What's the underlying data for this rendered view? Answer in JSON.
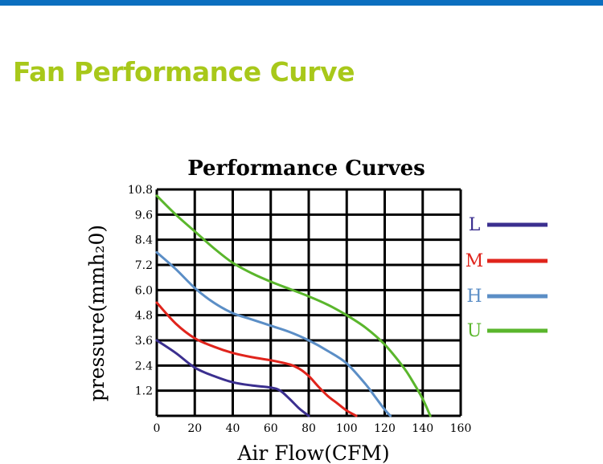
{
  "page": {
    "heading": "Fan Performance Curve",
    "accent_bar_color": "#0b6fbf",
    "heading_color": "#a8c81a"
  },
  "chart_data": {
    "type": "line",
    "title": "Performance Curves",
    "xlabel": "Air Flow(CFM)",
    "ylabel": "pressure(mmh₂0)",
    "xlim": [
      0,
      160
    ],
    "ylim": [
      0,
      10.8
    ],
    "x_ticks": [
      "0",
      "20",
      "40",
      "60",
      "80",
      "100",
      "120",
      "140",
      "160"
    ],
    "y_ticks": [
      "1.2",
      "2.4",
      "3.6",
      "4.8",
      "6.0",
      "7.2",
      "8.4",
      "9.6",
      "10.8"
    ],
    "grid": true,
    "legend_position": "right",
    "series": [
      {
        "name": "L",
        "color": "#3b2f8f",
        "x": [
          0,
          10,
          20,
          30,
          40,
          50,
          60,
          65,
          70,
          75,
          80
        ],
        "y": [
          3.6,
          3.0,
          2.3,
          1.9,
          1.6,
          1.45,
          1.35,
          1.2,
          0.8,
          0.35,
          0
        ]
      },
      {
        "name": "M",
        "color": "#e0241c",
        "x": [
          0,
          10,
          20,
          30,
          40,
          50,
          60,
          70,
          75,
          80,
          85,
          90,
          95,
          100,
          105
        ],
        "y": [
          5.4,
          4.4,
          3.7,
          3.3,
          3.0,
          2.8,
          2.65,
          2.45,
          2.25,
          1.9,
          1.4,
          0.95,
          0.6,
          0.25,
          0
        ]
      },
      {
        "name": "H",
        "color": "#5b8ec6",
        "x": [
          0,
          10,
          20,
          30,
          40,
          50,
          60,
          70,
          80,
          90,
          100,
          110,
          115,
          120,
          123
        ],
        "y": [
          7.8,
          7.0,
          6.1,
          5.4,
          4.9,
          4.6,
          4.3,
          4.0,
          3.6,
          3.1,
          2.5,
          1.5,
          0.9,
          0.3,
          0
        ]
      },
      {
        "name": "U",
        "color": "#5ab62c",
        "x": [
          0,
          10,
          20,
          30,
          40,
          50,
          60,
          70,
          80,
          90,
          100,
          110,
          120,
          130,
          135,
          140,
          144
        ],
        "y": [
          10.5,
          9.6,
          8.8,
          8.0,
          7.3,
          6.8,
          6.4,
          6.05,
          5.7,
          5.3,
          4.8,
          4.2,
          3.4,
          2.3,
          1.6,
          0.8,
          0
        ]
      }
    ]
  }
}
